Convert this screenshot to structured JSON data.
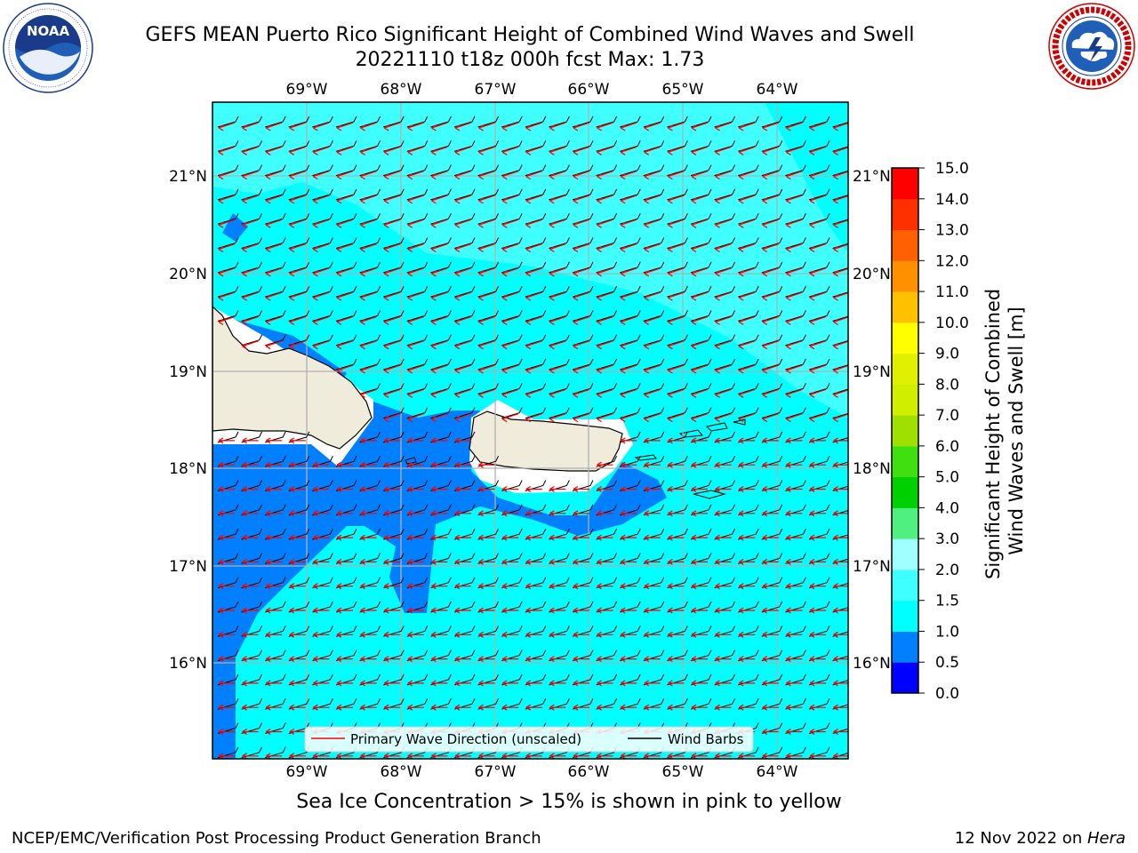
{
  "header": {
    "title_line1": "GEFS MEAN Puerto Rico Significant Height of Combined Wind Waves and Swell",
    "title_line2": "20221110 t18z 000h fcst   Max: 1.73"
  },
  "logos": {
    "left": {
      "icon": "noaa-logo-icon",
      "name": "NOAA",
      "ring_text": "NATIONAL OCEANIC AND ATMOSPHERIC ADMINISTRATION · U.S. DEPARTMENT OF COMMERCE"
    },
    "right": {
      "icon": "nws-logo-icon",
      "ring_text": "NATIONAL WEATHER SERVICE"
    }
  },
  "map": {
    "lon_labels": [
      "69°W",
      "68°W",
      "67°W",
      "66°W",
      "65°W",
      "64°W"
    ],
    "lat_labels": [
      "21°N",
      "20°N",
      "19°N",
      "18°N",
      "17°N",
      "16°N"
    ],
    "colors": {
      "land": "#efecdc",
      "coast": "#000000",
      "grid": "#b0b0b0",
      "arrow": "#ff0000",
      "barb": "#000000"
    }
  },
  "legend": {
    "items": [
      {
        "label": "Primary Wave Direction (unscaled)",
        "color": "#ff0000"
      },
      {
        "label": "Wind Barbs",
        "color": "#000000"
      }
    ]
  },
  "colorbar": {
    "label_line1": "Significant Height of Combined",
    "label_line2": "Wind Waves and Swell [m]",
    "ticks": [
      "15.0",
      "14.0",
      "13.0",
      "12.0",
      "11.0",
      "10.0",
      "9.0",
      "8.0",
      "7.0",
      "6.0",
      "5.0",
      "4.0",
      "3.0",
      "2.0",
      "1.5",
      "1.0",
      "0.5",
      "0.0"
    ],
    "colors_bottom_to_top": [
      "#0000ff",
      "#0080ff",
      "#00ffff",
      "#40ffff",
      "#a0ffff",
      "#50f080",
      "#00d000",
      "#40e010",
      "#a0e000",
      "#d0ee00",
      "#e0f000",
      "#ffff00",
      "#ffc000",
      "#ff9000",
      "#ff6000",
      "#ff3000",
      "#ff0000"
    ]
  },
  "note": "Sea Ice Concentration > 15% is shown in pink to yellow",
  "footer": {
    "left": "NCEP/EMC/Verification Post Processing Product Generation Branch",
    "right_prefix": "12 Nov 2022 on ",
    "right_host": "Hera"
  }
}
